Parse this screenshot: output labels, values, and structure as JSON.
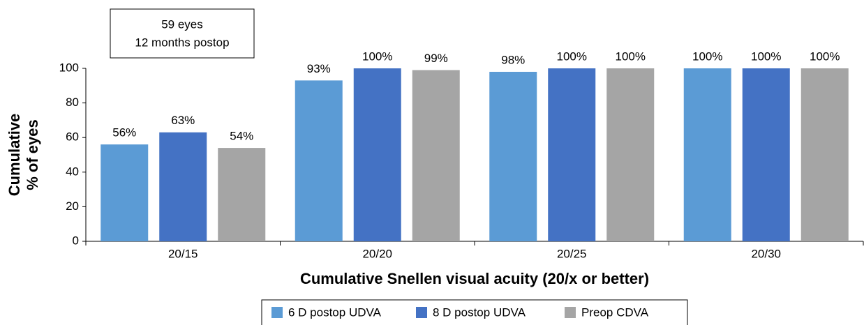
{
  "chart_data": {
    "type": "bar",
    "annotation": [
      "59 eyes",
      "12 months postop"
    ],
    "ylabel": [
      "Cumulative",
      "% of eyes"
    ],
    "xlabel": "Cumulative Snellen visual acuity (20/x or better)",
    "categories": [
      "20/15",
      "20/20",
      "20/25",
      "20/30"
    ],
    "series": [
      {
        "name": "6 D postop UDVA",
        "color": "#5b9bd5",
        "values": [
          56,
          93,
          98,
          100
        ],
        "value_labels": [
          "56%",
          "93%",
          "98%",
          "100%"
        ]
      },
      {
        "name": "8 D postop UDVA",
        "color": "#4472c4",
        "values": [
          63,
          100,
          100,
          100
        ],
        "value_labels": [
          "63%",
          "100%",
          "100%",
          "100%"
        ]
      },
      {
        "name": "Preop CDVA",
        "color": "#a5a5a5",
        "values": [
          54,
          99,
          100,
          100
        ],
        "value_labels": [
          "54%",
          "99%",
          "100%",
          "100%"
        ]
      }
    ],
    "ylim": [
      0,
      100
    ],
    "yticks": [
      0,
      20,
      40,
      60,
      80,
      100
    ],
    "grid": false,
    "legend": "bottom"
  }
}
